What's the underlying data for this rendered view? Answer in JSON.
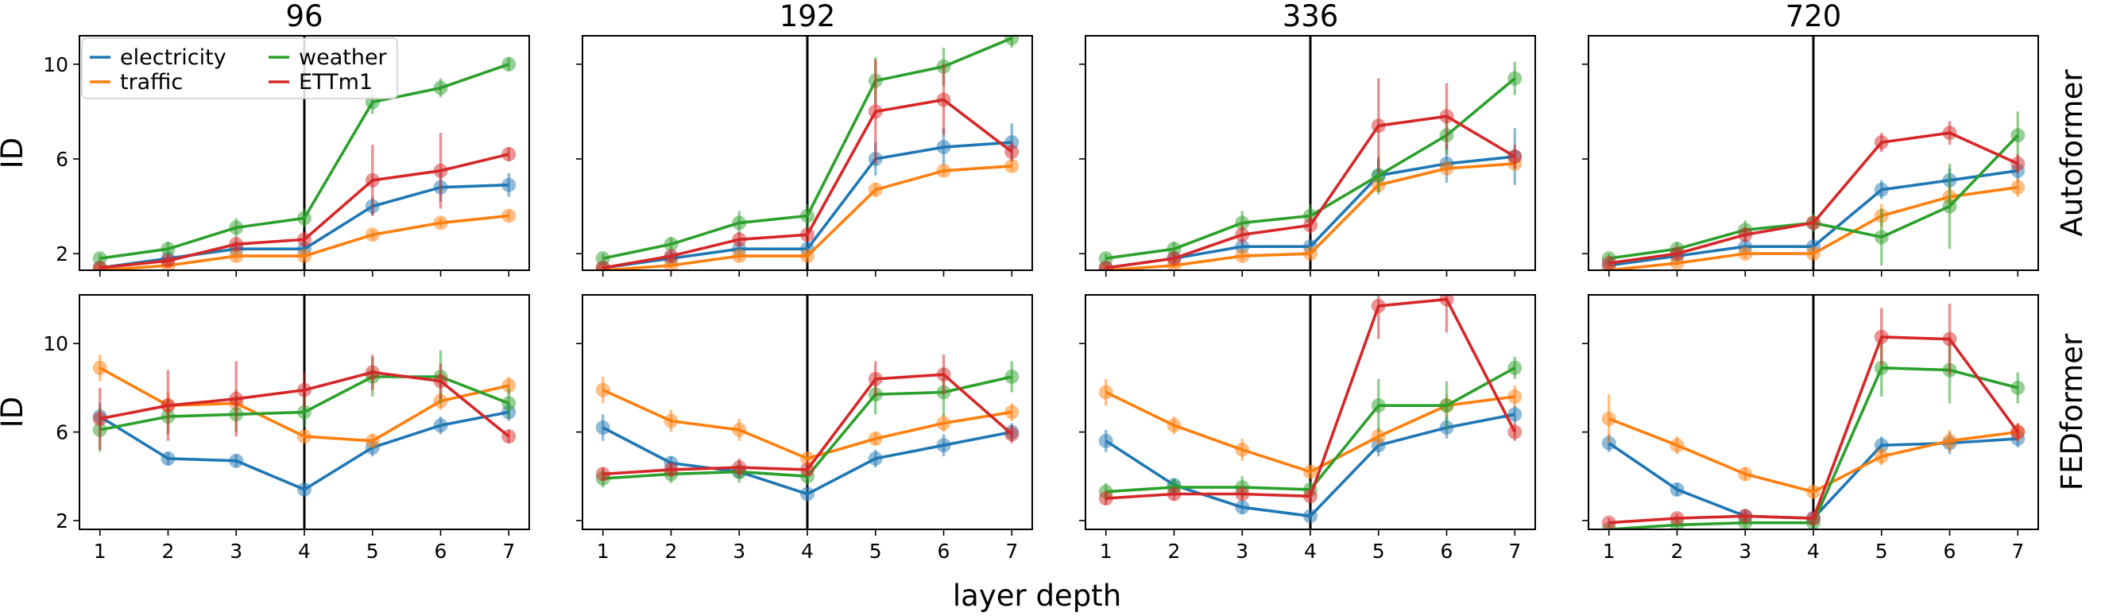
{
  "figure": {
    "xlabel": "layer depth",
    "ylabel": "ID",
    "columns": [
      "96",
      "192",
      "336",
      "720"
    ],
    "rows": [
      "Autoformer",
      "FEDformer"
    ],
    "legend": {
      "placement": "top-left",
      "entries": [
        "electricity",
        "traffic",
        "weather",
        "ETTm1"
      ]
    },
    "colors": {
      "electricity": "#1f77b4",
      "traffic": "#ff7f0e",
      "weather": "#2ca02c",
      "ETTm1": "#d62728"
    }
  },
  "chart_data": [
    {
      "type": "line",
      "row": "Autoformer",
      "column": "96",
      "x": [
        1,
        2,
        3,
        4,
        5,
        6,
        7
      ],
      "xticks": [
        1,
        2,
        3,
        4,
        5,
        6,
        7
      ],
      "ylim": [
        1.3,
        11.2
      ],
      "yticks": [
        2,
        6,
        10
      ],
      "vline": 4,
      "grid": false,
      "series": [
        {
          "name": "electricity",
          "values": [
            1.4,
            1.8,
            2.2,
            2.2,
            4.0,
            4.8,
            4.9
          ],
          "err": [
            0.1,
            0.2,
            0.3,
            0.3,
            0.4,
            0.6,
            0.5
          ]
        },
        {
          "name": "traffic",
          "values": [
            1.3,
            1.5,
            1.9,
            1.9,
            2.8,
            3.3,
            3.6
          ],
          "err": [
            0.1,
            0.1,
            0.2,
            0.2,
            0.2,
            0.2,
            0.2
          ]
        },
        {
          "name": "weather",
          "values": [
            1.8,
            2.2,
            3.1,
            3.5,
            8.4,
            9.0,
            10.0
          ],
          "err": [
            0.2,
            0.3,
            0.4,
            0.4,
            0.5,
            0.4,
            0.3
          ]
        },
        {
          "name": "ETTm1",
          "values": [
            1.4,
            1.7,
            2.4,
            2.6,
            5.1,
            5.5,
            6.2
          ],
          "err": [
            0.1,
            0.2,
            0.3,
            0.3,
            1.5,
            1.6,
            0.3
          ]
        }
      ]
    },
    {
      "type": "line",
      "row": "Autoformer",
      "column": "192",
      "x": [
        1,
        2,
        3,
        4,
        5,
        6,
        7
      ],
      "xticks": [
        1,
        2,
        3,
        4,
        5,
        6,
        7
      ],
      "ylim": [
        1.3,
        11.2
      ],
      "yticks": [
        2,
        6,
        10
      ],
      "vline": 4,
      "grid": false,
      "series": [
        {
          "name": "electricity",
          "values": [
            1.4,
            1.8,
            2.2,
            2.2,
            6.0,
            6.5,
            6.7
          ],
          "err": [
            0.1,
            0.2,
            0.3,
            0.3,
            0.7,
            0.8,
            0.8
          ]
        },
        {
          "name": "traffic",
          "values": [
            1.3,
            1.5,
            1.9,
            1.9,
            4.7,
            5.5,
            5.7
          ],
          "err": [
            0.1,
            0.1,
            0.2,
            0.2,
            0.3,
            0.2,
            0.2
          ]
        },
        {
          "name": "weather",
          "values": [
            1.8,
            2.4,
            3.3,
            3.6,
            9.3,
            9.9,
            11.1
          ],
          "err": [
            0.2,
            0.3,
            0.5,
            0.5,
            1.0,
            0.8,
            0.4
          ]
        },
        {
          "name": "ETTm1",
          "values": [
            1.4,
            1.9,
            2.6,
            2.8,
            8.0,
            8.5,
            6.3
          ],
          "err": [
            0.1,
            0.2,
            0.3,
            0.3,
            2.2,
            1.5,
            0.4
          ]
        }
      ]
    },
    {
      "type": "line",
      "row": "Autoformer",
      "column": "336",
      "x": [
        1,
        2,
        3,
        4,
        5,
        6,
        7
      ],
      "xticks": [
        1,
        2,
        3,
        4,
        5,
        6,
        7
      ],
      "ylim": [
        1.3,
        11.2
      ],
      "yticks": [
        2,
        6,
        10
      ],
      "vline": 4,
      "grid": false,
      "series": [
        {
          "name": "electricity",
          "values": [
            1.4,
            1.8,
            2.3,
            2.3,
            5.3,
            5.8,
            6.1
          ],
          "err": [
            0.1,
            0.2,
            0.3,
            0.3,
            0.7,
            0.8,
            1.2
          ]
        },
        {
          "name": "traffic",
          "values": [
            1.3,
            1.5,
            1.9,
            2.0,
            4.9,
            5.6,
            5.8
          ],
          "err": [
            0.1,
            0.1,
            0.2,
            0.2,
            0.3,
            0.2,
            0.2
          ]
        },
        {
          "name": "weather",
          "values": [
            1.8,
            2.2,
            3.3,
            3.6,
            5.3,
            7.0,
            9.4
          ],
          "err": [
            0.2,
            0.3,
            0.5,
            0.5,
            0.8,
            0.8,
            0.7
          ]
        },
        {
          "name": "ETTm1",
          "values": [
            1.4,
            1.8,
            2.8,
            3.2,
            7.4,
            7.8,
            6.1
          ],
          "err": [
            0.1,
            0.2,
            0.4,
            0.4,
            2.0,
            1.4,
            0.5
          ]
        }
      ]
    },
    {
      "type": "line",
      "row": "Autoformer",
      "column": "720",
      "x": [
        1,
        2,
        3,
        4,
        5,
        6,
        7
      ],
      "xticks": [
        1,
        2,
        3,
        4,
        5,
        6,
        7
      ],
      "ylim": [
        1.3,
        11.2
      ],
      "yticks": [
        2,
        6,
        10
      ],
      "vline": 4,
      "grid": false,
      "series": [
        {
          "name": "electricity",
          "values": [
            1.5,
            1.9,
            2.3,
            2.3,
            4.7,
            5.1,
            5.5
          ],
          "err": [
            0.1,
            0.2,
            0.3,
            0.3,
            0.4,
            0.5,
            0.5
          ]
        },
        {
          "name": "traffic",
          "values": [
            1.3,
            1.6,
            2.0,
            2.0,
            3.6,
            4.4,
            4.8
          ],
          "err": [
            0.1,
            0.1,
            0.2,
            0.2,
            0.5,
            0.5,
            0.4
          ]
        },
        {
          "name": "weather",
          "values": [
            1.8,
            2.2,
            3.0,
            3.3,
            2.7,
            4.0,
            7.0
          ],
          "err": [
            0.2,
            0.3,
            0.4,
            0.4,
            1.2,
            1.8,
            1.0
          ]
        },
        {
          "name": "ETTm1",
          "values": [
            1.6,
            2.0,
            2.8,
            3.3,
            6.7,
            7.1,
            5.8
          ],
          "err": [
            0.1,
            0.2,
            0.3,
            0.3,
            0.4,
            0.5,
            0.4
          ]
        }
      ]
    },
    {
      "type": "line",
      "row": "FEDformer",
      "column": "96",
      "x": [
        1,
        2,
        3,
        4,
        5,
        6,
        7
      ],
      "xticks": [
        1,
        2,
        3,
        4,
        5,
        6,
        7
      ],
      "ylim": [
        1.6,
        12.2
      ],
      "yticks": [
        2,
        6,
        10
      ],
      "vline": 4,
      "grid": false,
      "series": [
        {
          "name": "electricity",
          "values": [
            6.7,
            4.8,
            4.7,
            3.4,
            5.3,
            6.3,
            6.9
          ],
          "err": [
            0.6,
            0.3,
            0.3,
            0.3,
            0.4,
            0.4,
            0.4
          ]
        },
        {
          "name": "traffic",
          "values": [
            8.9,
            7.2,
            7.3,
            5.8,
            5.6,
            7.4,
            8.1
          ],
          "err": [
            0.6,
            0.6,
            0.6,
            0.3,
            0.3,
            0.4,
            0.4
          ]
        },
        {
          "name": "weather",
          "values": [
            6.1,
            6.7,
            6.8,
            6.9,
            8.5,
            8.5,
            7.3
          ],
          "err": [
            1.0,
            0.8,
            0.8,
            0.7,
            0.9,
            1.2,
            0.7
          ]
        },
        {
          "name": "ETTm1",
          "values": [
            6.6,
            7.2,
            7.5,
            7.9,
            8.7,
            8.3,
            5.8
          ],
          "err": [
            1.4,
            1.6,
            1.7,
            0.8,
            0.8,
            0.8,
            0.3
          ]
        }
      ]
    },
    {
      "type": "line",
      "row": "FEDformer",
      "column": "192",
      "x": [
        1,
        2,
        3,
        4,
        5,
        6,
        7
      ],
      "xticks": [
        1,
        2,
        3,
        4,
        5,
        6,
        7
      ],
      "ylim": [
        1.6,
        12.2
      ],
      "yticks": [
        2,
        6,
        10
      ],
      "vline": 4,
      "grid": false,
      "series": [
        {
          "name": "electricity",
          "values": [
            6.2,
            4.6,
            4.2,
            3.2,
            4.8,
            5.4,
            6.0
          ],
          "err": [
            0.6,
            0.3,
            0.3,
            0.3,
            0.4,
            0.5,
            0.4
          ]
        },
        {
          "name": "traffic",
          "values": [
            7.9,
            6.5,
            6.1,
            4.8,
            5.7,
            6.4,
            6.9
          ],
          "err": [
            0.6,
            0.5,
            0.5,
            0.3,
            0.3,
            0.4,
            0.4
          ]
        },
        {
          "name": "weather",
          "values": [
            3.9,
            4.1,
            4.2,
            4.0,
            7.7,
            7.8,
            8.5
          ],
          "err": [
            0.4,
            0.4,
            0.5,
            0.4,
            0.9,
            1.1,
            0.7
          ]
        },
        {
          "name": "ETTm1",
          "values": [
            4.1,
            4.3,
            4.4,
            4.3,
            8.4,
            8.6,
            5.9
          ],
          "err": [
            0.3,
            0.3,
            0.4,
            0.3,
            0.8,
            0.9,
            0.4
          ]
        }
      ]
    },
    {
      "type": "line",
      "row": "FEDformer",
      "column": "336",
      "x": [
        1,
        2,
        3,
        4,
        5,
        6,
        7
      ],
      "xticks": [
        1,
        2,
        3,
        4,
        5,
        6,
        7
      ],
      "ylim": [
        1.6,
        12.2
      ],
      "yticks": [
        2,
        6,
        10
      ],
      "vline": 4,
      "grid": false,
      "series": [
        {
          "name": "electricity",
          "values": [
            5.6,
            3.6,
            2.6,
            2.2,
            5.4,
            6.2,
            6.8
          ],
          "err": [
            0.5,
            0.3,
            0.3,
            0.2,
            0.5,
            0.5,
            0.4
          ]
        },
        {
          "name": "traffic",
          "values": [
            7.8,
            6.3,
            5.2,
            4.2,
            5.8,
            7.2,
            7.6
          ],
          "err": [
            0.6,
            0.4,
            0.5,
            0.3,
            0.4,
            0.5,
            0.5
          ]
        },
        {
          "name": "weather",
          "values": [
            3.3,
            3.5,
            3.5,
            3.4,
            7.2,
            7.2,
            8.9
          ],
          "err": [
            0.4,
            0.4,
            0.5,
            0.4,
            1.2,
            1.1,
            0.5
          ]
        },
        {
          "name": "ETTm1",
          "values": [
            3.0,
            3.2,
            3.2,
            3.1,
            11.7,
            12.0,
            6.0
          ],
          "err": [
            0.3,
            0.3,
            0.3,
            0.3,
            1.5,
            1.5,
            0.4
          ]
        }
      ]
    },
    {
      "type": "line",
      "row": "FEDformer",
      "column": "720",
      "x": [
        1,
        2,
        3,
        4,
        5,
        6,
        7
      ],
      "xticks": [
        1,
        2,
        3,
        4,
        5,
        6,
        7
      ],
      "ylim": [
        1.6,
        12.2
      ],
      "yticks": [
        2,
        6,
        10
      ],
      "vline": 4,
      "grid": false,
      "series": [
        {
          "name": "electricity",
          "values": [
            5.5,
            3.4,
            2.2,
            2.1,
            5.4,
            5.5,
            5.7
          ],
          "err": [
            0.4,
            0.3,
            0.2,
            0.2,
            0.4,
            0.5,
            0.4
          ]
        },
        {
          "name": "traffic",
          "values": [
            6.6,
            5.4,
            4.1,
            3.3,
            4.9,
            5.6,
            6.0
          ],
          "err": [
            1.1,
            0.4,
            0.3,
            0.3,
            0.4,
            0.5,
            0.4
          ]
        },
        {
          "name": "weather",
          "values": [
            1.6,
            1.8,
            1.9,
            1.9,
            8.9,
            8.8,
            8.0
          ],
          "err": [
            0.2,
            0.2,
            0.3,
            0.3,
            1.3,
            1.5,
            0.7
          ]
        },
        {
          "name": "ETTm1",
          "values": [
            1.9,
            2.1,
            2.2,
            2.1,
            10.3,
            10.2,
            6.0
          ],
          "err": [
            0.2,
            0.2,
            0.3,
            0.3,
            1.3,
            1.6,
            0.4
          ]
        }
      ]
    }
  ]
}
